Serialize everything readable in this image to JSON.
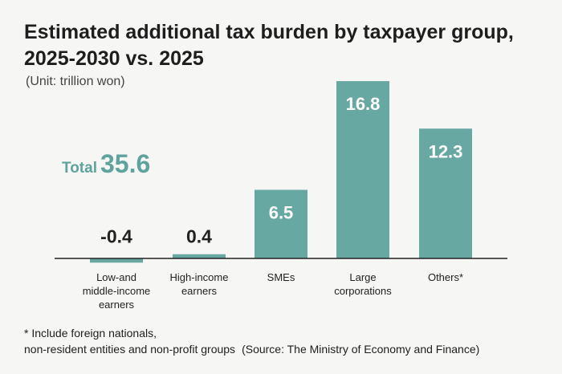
{
  "chart_data": {
    "type": "bar",
    "title_line1": "Estimated additional tax burden by taxpayer group,",
    "title_line2": "2025-2030 vs. 2025",
    "unit": "(Unit: trillion won)",
    "total_label": "Total",
    "total_value": "35.6",
    "categories": [
      [
        "Low-and",
        "middle-income",
        "earners"
      ],
      [
        "High-income",
        "earners"
      ],
      [
        "SMEs"
      ],
      [
        "Large",
        "corporations"
      ],
      [
        "Others*"
      ]
    ],
    "values": [
      -0.4,
      0.4,
      6.5,
      16.8,
      12.3
    ],
    "value_labels": [
      "-0.4",
      "0.4",
      "6.5",
      "16.8",
      "12.3"
    ],
    "footnote_line1": "* Include foreign nationals,",
    "footnote_line2": "non-resident entities and non-profit groups",
    "source": "(Source: The Ministry of Economy and Finance)",
    "colors": {
      "bar": "#68a8a3",
      "axis": "#222222",
      "label_inside": "#ffffff",
      "label_outside": "#222222",
      "accent": "#5fa39e"
    }
  }
}
